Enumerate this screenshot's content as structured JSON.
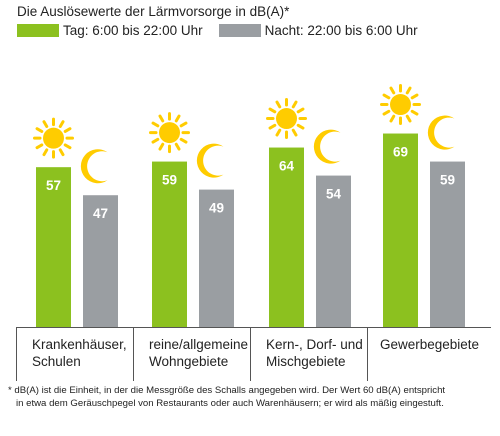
{
  "colors": {
    "day": "#8cc11f",
    "night": "#9a9ea2",
    "sun": "#ffcc00",
    "moon": "#ffcc00",
    "axis": "#555555",
    "label": "#ffffff"
  },
  "chart_data": {
    "type": "bar",
    "title": "Die Auslösewerte der Lärmvorsorge in dB(A)*",
    "categories_lines": [
      [
        "Krankenhäuser,",
        "Schulen"
      ],
      [
        "reine/allgemeine",
        "Wohngebiete"
      ],
      [
        "Kern-, Dorf- und",
        "Mischgebiete"
      ],
      [
        "Gewerbegebiete"
      ]
    ],
    "series": [
      {
        "name": "Tag: 6:00 bis 22:00 Uhr",
        "icon": "sun-icon",
        "values": [
          57,
          59,
          64,
          69
        ]
      },
      {
        "name": "Nacht: 22:00 bis 6:00 Uhr",
        "icon": "moon-icon",
        "values": [
          47,
          49,
          54,
          59
        ]
      }
    ],
    "legend_position": "top-left",
    "grid": false,
    "show_value_labels": true
  },
  "footnote": {
    "line1": "* dB(A) ist die Einheit, in der die Messgröße des Schalls angegeben wird. Der Wert 60 dB(A) entspricht",
    "line2": "in etwa dem Geräuschpegel von Restaurants oder auch Warenhäusern; er wird als mäßig eingestuft."
  }
}
